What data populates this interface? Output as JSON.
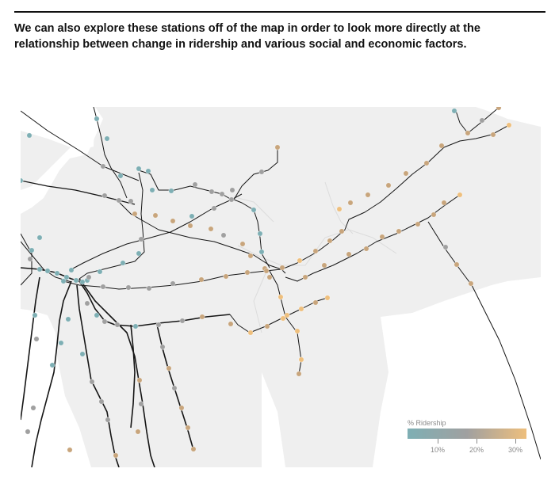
{
  "intro_text": "We can also explore these stations off of the map in order to look more directly at the relationship between change in ridership and various social and economic factors.",
  "legend": {
    "title": "% Ridership",
    "color_low": "#7eafb4",
    "color_mid": "#a0a0a0",
    "color_high": "#eebf7d",
    "ticks": [
      {
        "label": "10%",
        "value": 10
      },
      {
        "label": "20%",
        "value": 20
      },
      {
        "label": "30%",
        "value": 30
      }
    ]
  },
  "colors": {
    "land": "#efefef",
    "water": "#ffffff",
    "line": "#151515",
    "station_teal": "#7eafb4",
    "station_gray": "#a0a0a0",
    "station_tan": "#c8a57c",
    "station_orange": "#eebf7d"
  }
}
